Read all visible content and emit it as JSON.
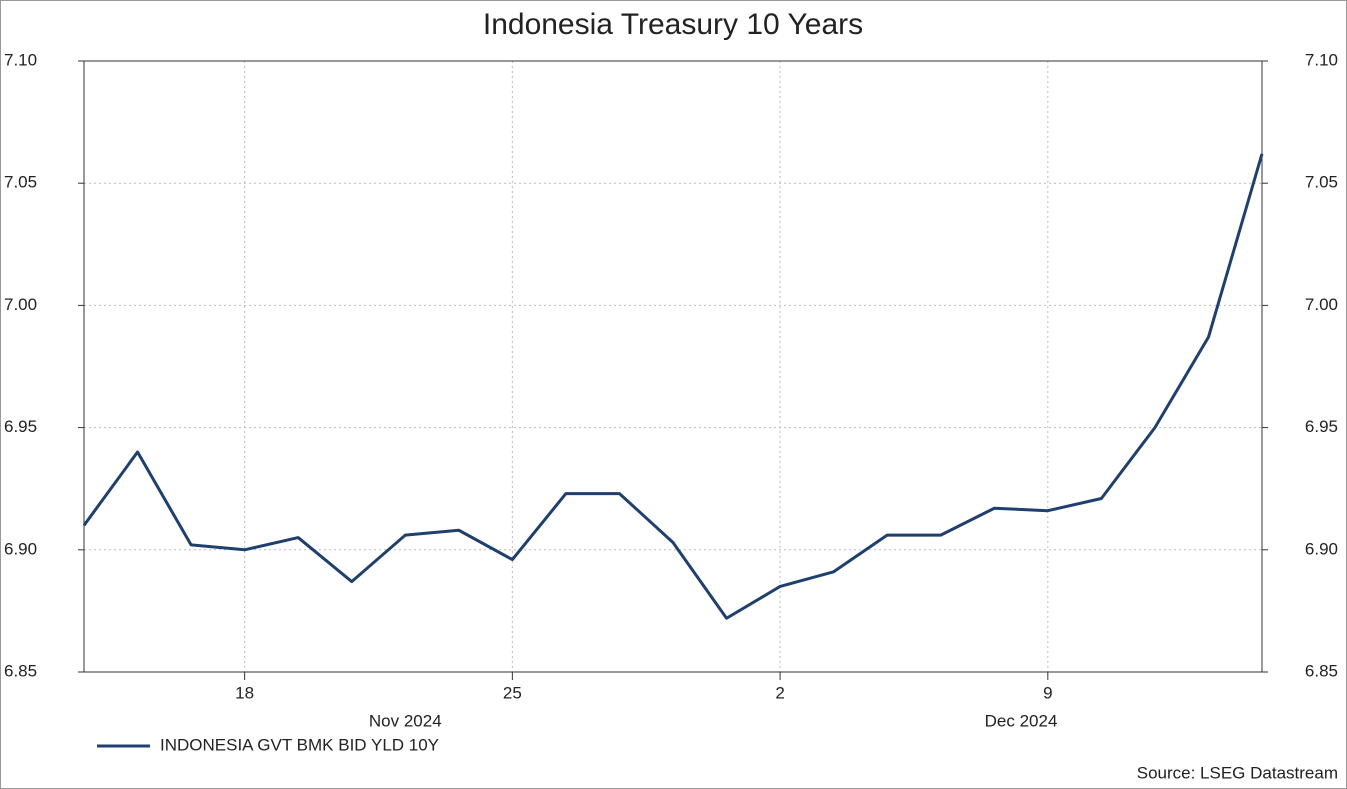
{
  "chart_data": {
    "type": "line",
    "title": "Indonesia Treasury 10 Years",
    "source": "Source: LSEG Datastream",
    "x": [
      "2024-11-13",
      "2024-11-14",
      "2024-11-15",
      "2024-11-18",
      "2024-11-19",
      "2024-11-20",
      "2024-11-21",
      "2024-11-22",
      "2024-11-25",
      "2024-11-26",
      "2024-11-27",
      "2024-11-28",
      "2024-11-29",
      "2024-12-02",
      "2024-12-03",
      "2024-12-04",
      "2024-12-05",
      "2024-12-06",
      "2024-12-09",
      "2024-12-10",
      "2024-12-11",
      "2024-12-12",
      "2024-12-13"
    ],
    "series": [
      {
        "name": "INDONESIA GVT BMK BID YLD 10Y",
        "color": "#1f3f6e",
        "values": [
          6.91,
          6.94,
          6.902,
          6.9,
          6.905,
          6.887,
          6.906,
          6.908,
          6.896,
          6.923,
          6.923,
          6.903,
          6.872,
          6.885,
          6.891,
          6.906,
          6.906,
          6.917,
          6.916,
          6.921,
          6.95,
          6.987,
          7.062
        ]
      }
    ],
    "xticks": [
      {
        "value": "2024-11-18",
        "label": "18"
      },
      {
        "value": "2024-11-25",
        "label": "25"
      },
      {
        "value": "2024-12-02",
        "label": "2"
      },
      {
        "value": "2024-12-09",
        "label": "9"
      }
    ],
    "month_labels": [
      {
        "value": "2024-11",
        "label": "Nov 2024"
      },
      {
        "value": "2024-12",
        "label": "Dec 2024"
      }
    ],
    "ylim": [
      6.85,
      7.1
    ],
    "yticks": [
      {
        "value": 6.85,
        "label": "6.85"
      },
      {
        "value": 6.9,
        "label": "6.90"
      },
      {
        "value": 6.95,
        "label": "6.95"
      },
      {
        "value": 7.0,
        "label": "7.00"
      },
      {
        "value": 7.05,
        "label": "7.05"
      },
      {
        "value": 7.1,
        "label": "7.10"
      }
    ],
    "y2lim": [
      6.85,
      7.1
    ],
    "y2ticks": [
      {
        "value": 6.85,
        "label": "6.85"
      },
      {
        "value": 6.9,
        "label": "6.90"
      },
      {
        "value": 6.95,
        "label": "6.95"
      },
      {
        "value": 7.0,
        "label": "7.00"
      },
      {
        "value": 7.05,
        "label": "7.05"
      },
      {
        "value": 7.1,
        "label": "7.10"
      }
    ],
    "grid": true,
    "legend": "bottom-left"
  }
}
